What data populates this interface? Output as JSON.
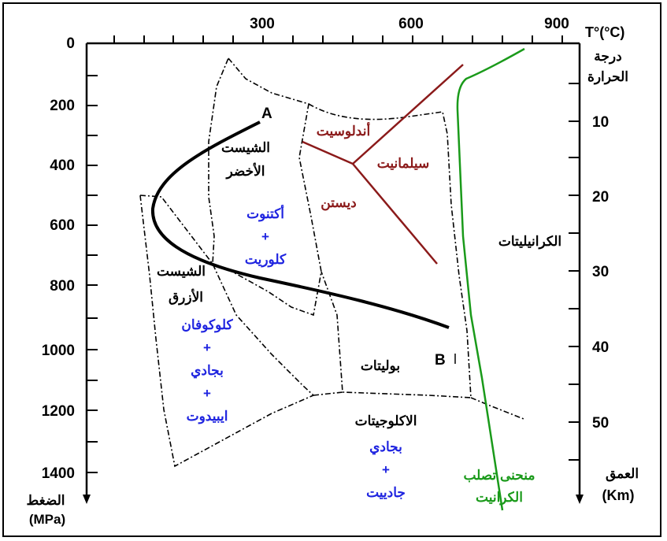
{
  "temperature_axis": {
    "ticks": [
      "300",
      "600",
      "900"
    ],
    "unit_label": "T°(°C)",
    "title_line1": "درجة",
    "title_line2": "الحرارة"
  },
  "pressure_axis": {
    "ticks": [
      "0",
      "200",
      "400",
      "600",
      "800",
      "1000",
      "1200",
      "1400"
    ],
    "title": "الضغط",
    "unit": "(MPa)"
  },
  "depth_axis": {
    "ticks": [
      "10",
      "20",
      "30",
      "40",
      "50"
    ],
    "title": "العمق",
    "unit": "(Km)"
  },
  "facies": {
    "greenschist_line1": "الشيست",
    "greenschist_line2": "الأخضر",
    "greenschist_minerals": [
      "أكتنوت",
      "+",
      "كلوريت"
    ],
    "blueschist_line1": "الشيست",
    "blueschist_line2": "الأزرق",
    "blueschist_minerals": [
      "كلوكوفان",
      "+",
      "بجادي",
      "+",
      "ايبيدوت"
    ],
    "amphibolite": "بوليتات",
    "eclogite": "الاكلوجيتات",
    "eclogite_minerals": [
      "بجادي",
      "+",
      "جادييت"
    ],
    "granulite": "الكرانيليتات"
  },
  "aluminosilicates": {
    "andalusite": "أندلوسيت",
    "sillimanite": "سيلمانيت",
    "kyanite": "ديستن"
  },
  "points": {
    "a": "A",
    "b": "B"
  },
  "granite_solidus_line1": "منحنى تصلب",
  "granite_solidus_line2": "الكرانيت",
  "colors": {
    "mineral_text": "#1f24e0",
    "aluminosilicate": "#8b1a1a",
    "solidus": "#1a9a1a",
    "path": "#000000"
  }
}
